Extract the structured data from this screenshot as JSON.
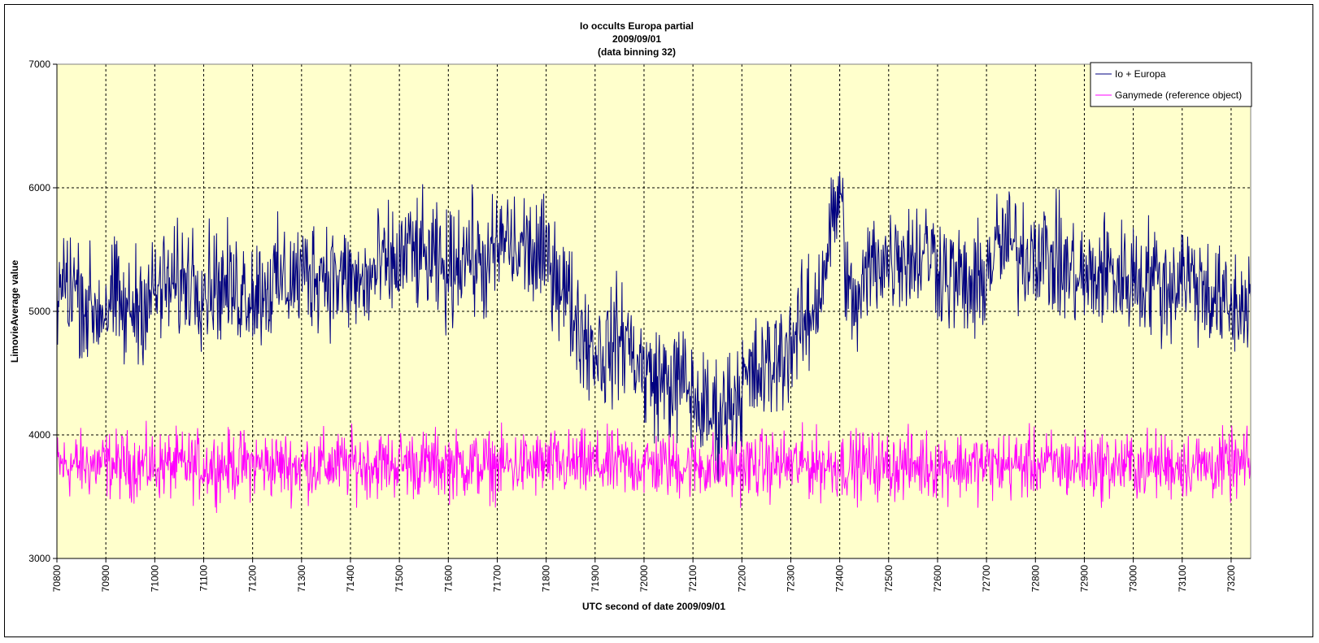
{
  "chart_data": {
    "type": "line",
    "title": [
      "Io occults Europa partial",
      "2009/09/01",
      "(data binning 32)"
    ],
    "xlabel": "UTC second of date 2009/09/01",
    "ylabel": "LimovieAverage value",
    "xlim": [
      70800,
      73240
    ],
    "ylim": [
      3000,
      7000
    ],
    "x_ticks": [
      "70800",
      "70900",
      "71000",
      "71100",
      "71200",
      "71300",
      "71400",
      "71500",
      "71600",
      "71700",
      "71800",
      "71900",
      "72000",
      "72100",
      "72200",
      "72300",
      "72400",
      "72500",
      "72600",
      "72700",
      "72800",
      "72900",
      "73000",
      "73100",
      "73200"
    ],
    "y_ticks": [
      "3000",
      "4000",
      "5000",
      "6000",
      "7000"
    ],
    "grid": true,
    "legend_position": "top-right",
    "plot_background": "#ffffcc",
    "series": [
      {
        "name": "Io + Europa",
        "color": "#000080",
        "x": [
          70800,
          70820,
          70840,
          70860,
          70880,
          70900,
          70920,
          70940,
          70960,
          70980,
          71000,
          71020,
          71040,
          71060,
          71080,
          71100,
          71120,
          71140,
          71160,
          71180,
          71200,
          71220,
          71240,
          71260,
          71280,
          71300,
          71320,
          71340,
          71360,
          71380,
          71400,
          71420,
          71440,
          71460,
          71480,
          71500,
          71520,
          71540,
          71560,
          71580,
          71600,
          71620,
          71640,
          71660,
          71680,
          71700,
          71720,
          71740,
          71760,
          71780,
          71800,
          71820,
          71840,
          71860,
          71880,
          71900,
          71920,
          71940,
          71960,
          71980,
          72000,
          72020,
          72040,
          72060,
          72080,
          72100,
          72120,
          72140,
          72160,
          72180,
          72200,
          72220,
          72240,
          72260,
          72280,
          72300,
          72320,
          72340,
          72360,
          72380,
          72400,
          72420,
          72440,
          72460,
          72480,
          72500,
          72520,
          72540,
          72560,
          72580,
          72600,
          72620,
          72640,
          72660,
          72680,
          72700,
          72720,
          72740,
          72760,
          72780,
          72800,
          72820,
          72840,
          72860,
          72880,
          72900,
          72920,
          72940,
          72960,
          72980,
          73000,
          73020,
          73040,
          73060,
          73080,
          73100,
          73120,
          73140,
          73160,
          73180,
          73200,
          73220,
          73240
        ],
        "y": [
          5150,
          5250,
          5200,
          5050,
          5000,
          5050,
          5100,
          4950,
          5050,
          5100,
          5150,
          5200,
          5200,
          5250,
          5300,
          5200,
          5250,
          5200,
          5150,
          5200,
          5150,
          5200,
          5200,
          5250,
          5250,
          5300,
          5300,
          5350,
          5300,
          5250,
          5250,
          5200,
          5250,
          5350,
          5350,
          5400,
          5500,
          5450,
          5400,
          5350,
          5300,
          5450,
          5500,
          5400,
          5350,
          5500,
          5600,
          5450,
          5550,
          5400,
          5450,
          5350,
          5150,
          4950,
          4800,
          4700,
          4650,
          4750,
          4800,
          4650,
          4500,
          4450,
          4450,
          4400,
          4450,
          4300,
          4200,
          4150,
          4200,
          4300,
          4400,
          4450,
          4500,
          4550,
          4650,
          4750,
          4850,
          4950,
          5200,
          5600,
          6000,
          5050,
          5050,
          5350,
          5450,
          5400,
          5500,
          5450,
          5450,
          5500,
          5400,
          5300,
          5250,
          5200,
          5150,
          5350,
          5500,
          5550,
          5500,
          5450,
          5550,
          5450,
          5400,
          5350,
          5300,
          5250,
          5250,
          5350,
          5300,
          5250,
          5300,
          5250,
          5300,
          5200,
          5200,
          5350,
          5250,
          5200,
          5150,
          5050,
          5000,
          5050,
          5100
        ]
      },
      {
        "name": "Ganymede (reference object)",
        "color": "#ff00ff",
        "x": [
          70800,
          70900,
          71000,
          71100,
          71200,
          71300,
          71400,
          71500,
          71600,
          71700,
          71800,
          71900,
          72000,
          72100,
          72200,
          72300,
          72400,
          72500,
          72600,
          72700,
          72800,
          72900,
          73000,
          73100,
          73200,
          73240
        ],
        "y": [
          3750,
          3760,
          3750,
          3750,
          3760,
          3750,
          3760,
          3770,
          3760,
          3750,
          3760,
          3750,
          3760,
          3750,
          3750,
          3760,
          3760,
          3750,
          3760,
          3750,
          3760,
          3750,
          3750,
          3760,
          3750,
          3750
        ]
      }
    ]
  }
}
